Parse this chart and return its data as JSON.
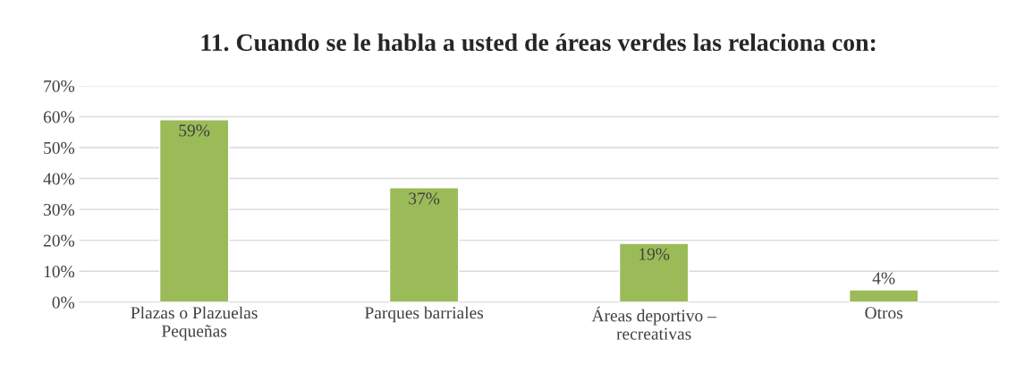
{
  "chart_data": {
    "type": "bar",
    "title": "11. Cuando se le habla a usted de áreas verdes las relaciona con:",
    "categories": [
      "Plazas o Plazuelas\nPequeñas",
      "Parques barriales",
      "Áreas deportivo –\nrecreativas",
      "Otros"
    ],
    "values": [
      59,
      37,
      19,
      4
    ],
    "value_labels": [
      "59%",
      "37%",
      "19%",
      "4%"
    ],
    "color": "#9bbb59",
    "ylim": [
      0,
      70
    ],
    "yticks": [
      {
        "value": 0,
        "label": "0%"
      },
      {
        "value": 10,
        "label": "10%"
      },
      {
        "value": 20,
        "label": "20%"
      },
      {
        "value": 30,
        "label": "30%"
      },
      {
        "value": 40,
        "label": "40%"
      },
      {
        "value": 50,
        "label": "50%"
      },
      {
        "value": 60,
        "label": "60%"
      },
      {
        "value": 70,
        "label": "70%"
      }
    ],
    "grid": "y"
  }
}
